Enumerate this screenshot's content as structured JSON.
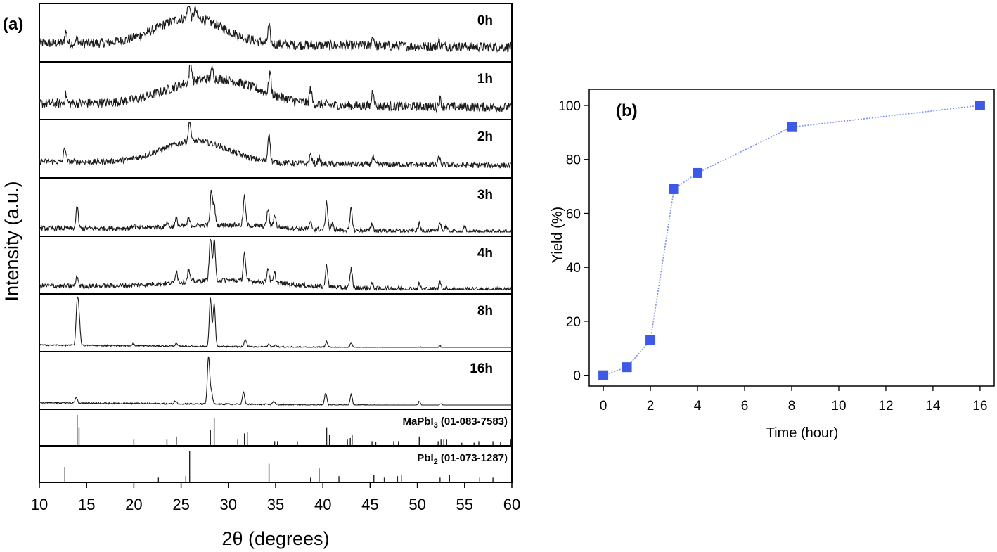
{
  "chart_data": [
    {
      "type": "line",
      "panel_label": "(a)",
      "xlabel": "2θ (degrees)",
      "ylabel": "Intensity (a.u.)",
      "xlim": [
        10,
        60
      ],
      "x_ticks": [
        10,
        15,
        20,
        25,
        30,
        35,
        40,
        45,
        50,
        55,
        60
      ],
      "series": [
        {
          "name": "0h",
          "baseline": 0.3,
          "hump": {
            "center": 26,
            "width": 5.0,
            "height": 0.55
          },
          "noise": 0.1,
          "peaks": [
            [
              12.8,
              0.25
            ],
            [
              14.0,
              0.1
            ],
            [
              25.8,
              0.35
            ],
            [
              26.5,
              0.2
            ],
            [
              34.3,
              0.35
            ],
            [
              45.3,
              0.2
            ],
            [
              52.3,
              0.1
            ]
          ]
        },
        {
          "name": "1h",
          "baseline": 0.25,
          "hump": {
            "center": 28.5,
            "width": 6.5,
            "height": 0.55
          },
          "noise": 0.1,
          "peaks": [
            [
              12.8,
              0.18
            ],
            [
              26.0,
              0.5
            ],
            [
              28.3,
              0.2
            ],
            [
              34.4,
              0.45
            ],
            [
              38.7,
              0.3
            ],
            [
              45.3,
              0.35
            ],
            [
              52.4,
              0.15
            ]
          ]
        },
        {
          "name": "2h",
          "baseline": 0.25,
          "hump": {
            "center": 26.5,
            "width": 5.0,
            "height": 0.45
          },
          "noise": 0.06,
          "peaks": [
            [
              12.7,
              0.3
            ],
            [
              25.9,
              0.5
            ],
            [
              34.3,
              0.6
            ],
            [
              38.7,
              0.2
            ],
            [
              39.6,
              0.15
            ],
            [
              45.3,
              0.15
            ],
            [
              52.3,
              0.15
            ]
          ]
        },
        {
          "name": "3h",
          "baseline": 0.08,
          "hump": {
            "center": 30,
            "width": 8,
            "height": 0.1
          },
          "noise": 0.05,
          "peaks": [
            [
              14.0,
              0.45
            ],
            [
              20.0,
              0.07
            ],
            [
              23.5,
              0.1
            ],
            [
              24.5,
              0.15
            ],
            [
              25.8,
              0.15
            ],
            [
              28.2,
              0.7
            ],
            [
              28.5,
              0.4
            ],
            [
              31.7,
              0.6
            ],
            [
              34.2,
              0.35
            ],
            [
              34.9,
              0.25
            ],
            [
              38.7,
              0.12
            ],
            [
              40.4,
              0.55
            ],
            [
              41.0,
              0.12
            ],
            [
              43.0,
              0.45
            ],
            [
              45.2,
              0.15
            ],
            [
              50.2,
              0.15
            ],
            [
              52.4,
              0.2
            ],
            [
              53.0,
              0.12
            ],
            [
              55.0,
              0.08
            ]
          ]
        },
        {
          "name": "4h",
          "baseline": 0.08,
          "hump": {
            "center": 30,
            "width": 8,
            "height": 0.15
          },
          "noise": 0.05,
          "peaks": [
            [
              14.0,
              0.2
            ],
            [
              24.5,
              0.25
            ],
            [
              25.8,
              0.25
            ],
            [
              28.1,
              0.95
            ],
            [
              28.5,
              0.85
            ],
            [
              31.7,
              0.6
            ],
            [
              34.2,
              0.3
            ],
            [
              34.9,
              0.2
            ],
            [
              40.4,
              0.45
            ],
            [
              43.0,
              0.4
            ],
            [
              45.2,
              0.1
            ],
            [
              50.2,
              0.1
            ],
            [
              52.4,
              0.15
            ]
          ]
        },
        {
          "name": "8h",
          "baseline": 0.05,
          "hump": {
            "center": 30,
            "width": 8,
            "height": 0.0
          },
          "noise": 0.015,
          "peaks": [
            [
              14.0,
              0.85
            ],
            [
              14.2,
              0.55
            ],
            [
              19.9,
              0.04
            ],
            [
              24.5,
              0.05
            ],
            [
              28.1,
              1.0
            ],
            [
              28.5,
              0.9
            ],
            [
              31.8,
              0.15
            ],
            [
              34.3,
              0.06
            ],
            [
              35.0,
              0.05
            ],
            [
              40.4,
              0.12
            ],
            [
              43.0,
              0.1
            ],
            [
              50.2,
              0.03
            ],
            [
              52.4,
              0.05
            ]
          ]
        },
        {
          "name": "16h",
          "baseline": 0.05,
          "hump": {
            "center": 30,
            "width": 8,
            "height": 0.0
          },
          "noise": 0.015,
          "peaks": [
            [
              13.9,
              0.12
            ],
            [
              24.4,
              0.06
            ],
            [
              27.9,
              1.0
            ],
            [
              28.2,
              0.25
            ],
            [
              31.6,
              0.25
            ],
            [
              34.8,
              0.07
            ],
            [
              40.3,
              0.25
            ],
            [
              43.0,
              0.22
            ],
            [
              50.2,
              0.08
            ],
            [
              52.5,
              0.05
            ]
          ]
        }
      ],
      "references": [
        {
          "name": "MaPbI3 (01-083-7583)",
          "label_main": "MaPbI",
          "label_sub": "3",
          "label_rest": " (01-083-7583)",
          "sticks": [
            [
              14.0,
              1.0
            ],
            [
              14.2,
              0.6
            ],
            [
              20.0,
              0.2
            ],
            [
              23.5,
              0.2
            ],
            [
              24.5,
              0.3
            ],
            [
              28.1,
              0.5
            ],
            [
              28.5,
              0.9
            ],
            [
              31.0,
              0.2
            ],
            [
              31.7,
              0.4
            ],
            [
              32.0,
              0.45
            ],
            [
              34.9,
              0.15
            ],
            [
              35.2,
              0.15
            ],
            [
              37.3,
              0.15
            ],
            [
              40.4,
              0.6
            ],
            [
              40.7,
              0.35
            ],
            [
              42.6,
              0.2
            ],
            [
              42.9,
              0.25
            ],
            [
              43.1,
              0.35
            ],
            [
              45.2,
              0.15
            ],
            [
              45.6,
              0.12
            ],
            [
              47.5,
              0.15
            ],
            [
              48.0,
              0.15
            ],
            [
              50.2,
              0.3
            ],
            [
              52.2,
              0.15
            ],
            [
              52.5,
              0.2
            ],
            [
              52.8,
              0.2
            ],
            [
              53.1,
              0.2
            ],
            [
              54.7,
              0.1
            ],
            [
              56.0,
              0.1
            ],
            [
              56.5,
              0.15
            ],
            [
              58.0,
              0.15
            ],
            [
              58.8,
              0.12
            ],
            [
              59.9,
              0.2
            ]
          ]
        },
        {
          "name": "PbI2 (01-073-1287)",
          "label_main": "PbI",
          "label_sub": "2",
          "label_rest": " (01-073-1287)",
          "sticks": [
            [
              12.7,
              0.5
            ],
            [
              22.6,
              0.15
            ],
            [
              25.5,
              0.2
            ],
            [
              25.9,
              1.0
            ],
            [
              34.3,
              0.6
            ],
            [
              38.7,
              0.15
            ],
            [
              39.6,
              0.45
            ],
            [
              41.7,
              0.2
            ],
            [
              45.4,
              0.25
            ],
            [
              46.5,
              0.15
            ],
            [
              47.9,
              0.2
            ],
            [
              48.3,
              0.25
            ],
            [
              52.4,
              0.15
            ],
            [
              53.4,
              0.25
            ],
            [
              56.6,
              0.15
            ],
            [
              58.0,
              0.15
            ]
          ]
        }
      ]
    },
    {
      "type": "scatter",
      "panel_label": "(b)",
      "xlabel": "Time (hour)",
      "ylabel": "Yield (%)",
      "xlim": [
        -0.6,
        16.6
      ],
      "ylim": [
        -4,
        106
      ],
      "x_ticks": [
        0,
        2,
        4,
        6,
        8,
        10,
        12,
        14,
        16
      ],
      "y_ticks": [
        0,
        20,
        40,
        60,
        80,
        100
      ],
      "marker_color": "#3d59e6",
      "line_color": "#7d8ef0",
      "line_style": "dotted",
      "x": [
        0,
        1,
        2,
        3,
        4,
        8,
        16
      ],
      "y": [
        0,
        3,
        13,
        69,
        75,
        92,
        100
      ]
    }
  ]
}
